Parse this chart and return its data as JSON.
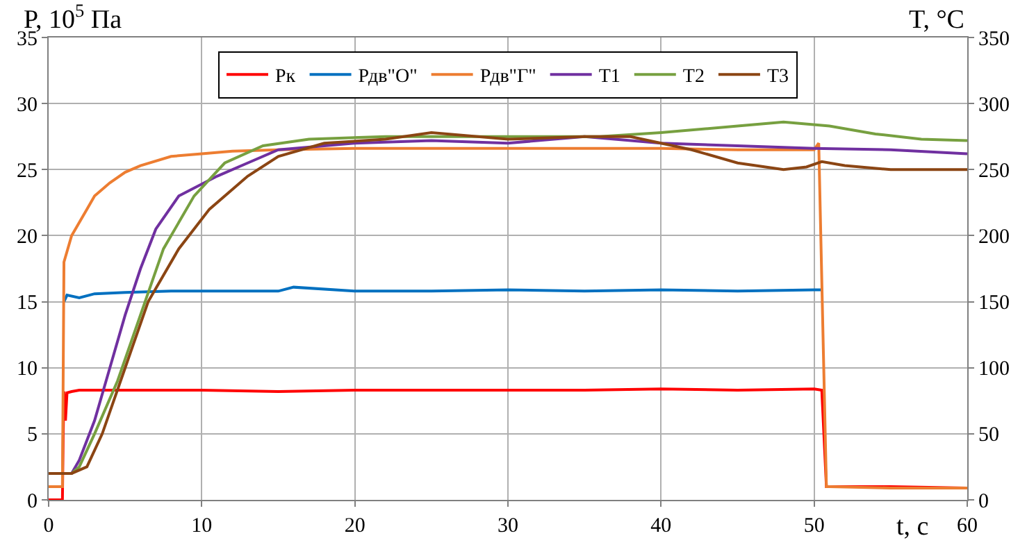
{
  "chart_data": {
    "type": "line",
    "xlabel": "t, с",
    "ylabel": "P, 10$^{5}$ Па",
    "y2label": "T, °C",
    "xlim": [
      0,
      60
    ],
    "xticks": [
      0,
      10,
      20,
      30,
      40,
      50,
      60
    ],
    "ylim": [
      0,
      35
    ],
    "yticks": [
      0,
      5,
      10,
      15,
      20,
      25,
      30,
      35
    ],
    "y2lim": [
      0,
      350
    ],
    "y2ticks": [
      0,
      50,
      100,
      150,
      200,
      250,
      300,
      350
    ],
    "grid": true,
    "legend": "top",
    "marker": "none",
    "line_style": "solid",
    "series": [
      {
        "name": "Рк",
        "color": "#ff0000",
        "x": [
          0,
          0.9,
          0.95,
          1.0,
          1.1,
          1.2,
          1.5,
          2,
          5,
          10,
          15,
          20,
          25,
          30,
          35,
          40,
          45,
          50,
          50.5,
          50.8,
          51,
          55,
          60
        ],
        "values": [
          0,
          0,
          5,
          8.2,
          6,
          8.1,
          8.2,
          8.3,
          8.3,
          8.3,
          8.2,
          8.3,
          8.3,
          8.3,
          8.3,
          8.4,
          8.3,
          8.4,
          8.3,
          1,
          1,
          1,
          0.9
        ]
      },
      {
        "name": "Рдв\"О\"",
        "color": "#0070c0",
        "x": [
          1.0,
          1.2,
          2,
          3,
          5,
          8,
          10,
          15,
          16,
          20,
          25,
          30,
          35,
          40,
          45,
          50,
          50.5
        ],
        "values": [
          15,
          15.5,
          15.3,
          15.6,
          15.7,
          15.8,
          15.8,
          15.8,
          16.1,
          15.8,
          15.8,
          15.9,
          15.8,
          15.9,
          15.8,
          15.9,
          15.9
        ]
      },
      {
        "name": "Рдв\"Г\"",
        "color": "#ed7d31",
        "x": [
          0,
          0.9,
          1.0,
          1.5,
          2,
          2.5,
          3,
          4,
          5,
          6,
          8,
          10,
          12,
          15,
          20,
          25,
          30,
          35,
          40,
          45,
          50,
          50.3,
          50.8,
          51,
          55,
          60
        ],
        "values": [
          1,
          1,
          18,
          20,
          21,
          22,
          23,
          24,
          24.8,
          25.3,
          26,
          26.2,
          26.4,
          26.5,
          26.6,
          26.6,
          26.6,
          26.6,
          26.6,
          26.5,
          26.5,
          27,
          1,
          1,
          0.9,
          0.9
        ]
      },
      {
        "name": "Т1",
        "color": "#7030a0",
        "axis": "y2",
        "x": [
          0,
          1.5,
          2,
          3,
          4,
          5,
          6,
          7,
          8.5,
          11,
          13,
          15,
          20,
          25,
          30,
          35,
          40,
          45,
          50,
          55,
          60
        ],
        "values": [
          20,
          20,
          30,
          60,
          100,
          140,
          175,
          205,
          230,
          245,
          255,
          265,
          270,
          272,
          270,
          275,
          270,
          268,
          266,
          265,
          262
        ]
      },
      {
        "name": "Т2",
        "color": "#77a040",
        "axis": "y2",
        "x": [
          0,
          1.5,
          2,
          3,
          4.5,
          6,
          7.5,
          9.5,
          11.5,
          14,
          17,
          22,
          30,
          36,
          40,
          45,
          48,
          51,
          54,
          57,
          60
        ],
        "values": [
          20,
          20,
          25,
          50,
          90,
          140,
          190,
          230,
          255,
          268,
          273,
          275,
          275,
          275,
          278,
          283,
          286,
          283,
          277,
          273,
          272
        ]
      },
      {
        "name": "Т3",
        "color": "#8b4513",
        "axis": "y2",
        "x": [
          0,
          1.5,
          2.5,
          3.5,
          5,
          6.5,
          8.5,
          10.5,
          13,
          15,
          18,
          22,
          25,
          30,
          35,
          38,
          42,
          45,
          48,
          49.5,
          50.5,
          52,
          55,
          60
        ],
        "values": [
          20,
          20,
          25,
          50,
          100,
          150,
          190,
          220,
          245,
          260,
          270,
          273,
          278,
          273,
          275,
          275,
          265,
          255,
          250,
          252,
          256,
          253,
          250,
          250
        ]
      }
    ]
  }
}
